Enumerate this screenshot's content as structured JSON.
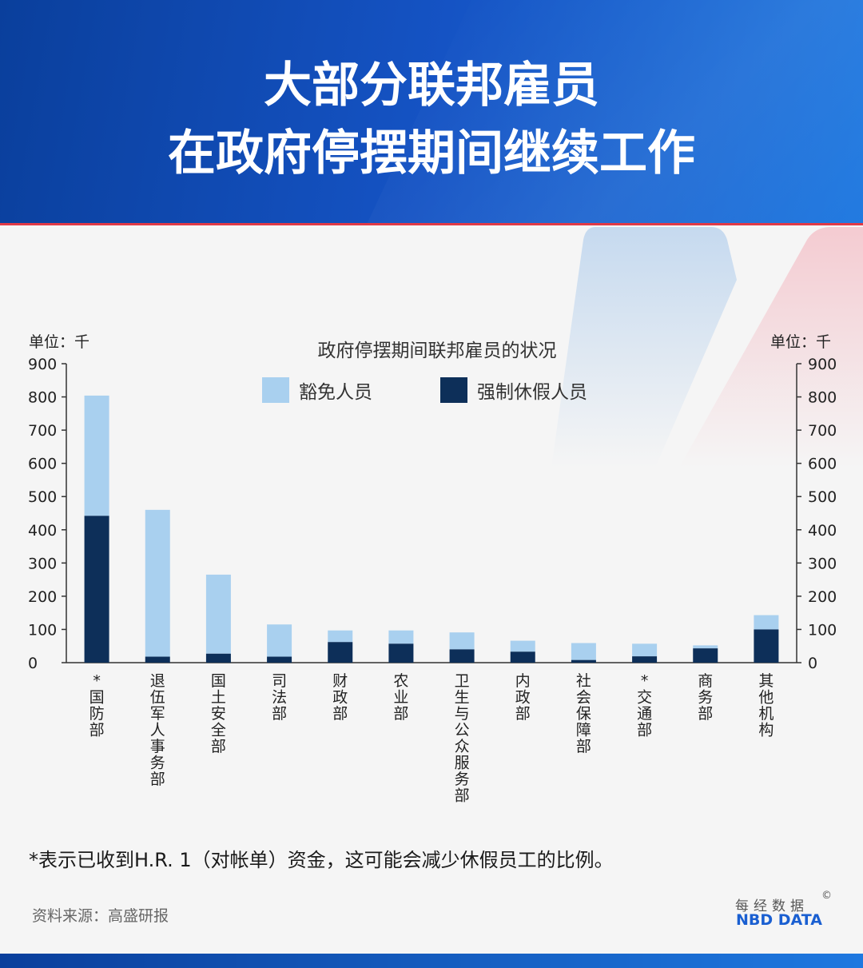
{
  "header": {
    "title_line1": "大部分联邦雇员",
    "title_line2": "在政府停摆期间继续工作"
  },
  "colors": {
    "header_start": "#0a3f9c",
    "header_end": "#1e78e0",
    "accent_red": "#e03a47",
    "excepted": "#a9d0ef",
    "furloughed": "#0d2f59"
  },
  "chart_data": {
    "type": "bar",
    "stacked": true,
    "title": "政府停摆期间联邦雇员的状况",
    "unit_left": "单位：千",
    "unit_right": "单位：千",
    "ylim": [
      0,
      900
    ],
    "yticks": [
      0,
      100,
      200,
      300,
      400,
      500,
      600,
      700,
      800,
      900
    ],
    "legend_position": "top",
    "categories": [
      "*国防部",
      "退伍军人事务部",
      "国土安全部",
      "司法部",
      "财政部",
      "农业部",
      "卫生与公众服务部",
      "内政部",
      "社会保障部",
      "*交通部",
      "商务部",
      "其他机构"
    ],
    "series": [
      {
        "name": "强制休假人员",
        "color": "#0d2f59",
        "values": [
          442,
          18,
          27,
          18,
          62,
          57,
          40,
          33,
          8,
          19,
          43,
          100
        ]
      },
      {
        "name": "豁免人员",
        "color": "#a9d0ef",
        "values": [
          362,
          442,
          238,
          97,
          35,
          40,
          51,
          33,
          51,
          38,
          9,
          43
        ]
      }
    ]
  },
  "footnote": "*表示已收到H.R. 1（对帐单）资金，这可能会减少休假员工的比例。",
  "source": "资料来源：高盛研报",
  "logo": {
    "cn": "每经数据",
    "copyright": "©",
    "en": "NBD DATA"
  }
}
